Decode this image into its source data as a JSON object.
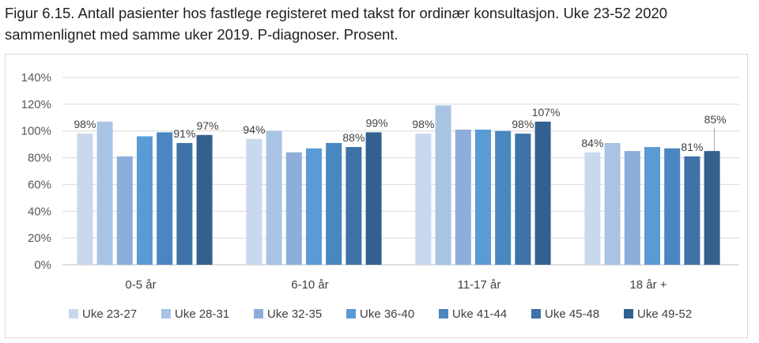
{
  "caption": {
    "line1": "Figur 6.15. Antall pasienter hos fastlege registeret med takst for ordinær konsultasjon. Uke 23-52 2020",
    "line2": "sammenlignet med samme uker 2019. P-diagnoser. Prosent."
  },
  "chart_data": {
    "type": "bar",
    "title": "",
    "xlabel": "",
    "ylabel": "",
    "ylim": [
      0,
      140
    ],
    "y_ticks": [
      "0%",
      "20%",
      "40%",
      "60%",
      "80%",
      "100%",
      "120%",
      "140%"
    ],
    "grid": true,
    "legend_position": "bottom",
    "categories": [
      "0-5 år",
      "6-10 år",
      "11-17 år",
      "18 år +"
    ],
    "series": [
      {
        "name": "Uke 23-27",
        "color": "#c9d8ec",
        "values": [
          98,
          94,
          98,
          84
        ],
        "labels": [
          "98%",
          "94%",
          "98%",
          "84%"
        ]
      },
      {
        "name": "Uke 28-31",
        "color": "#a9c3e5",
        "values": [
          107,
          100,
          119,
          91
        ],
        "labels": [
          "",
          "",
          "",
          ""
        ]
      },
      {
        "name": "Uke 32-35",
        "color": "#8daedb",
        "values": [
          81,
          84,
          101,
          85
        ],
        "labels": [
          "",
          "",
          "",
          ""
        ]
      },
      {
        "name": "Uke 36-40",
        "color": "#5b9bd5",
        "values": [
          96,
          87,
          101,
          88
        ],
        "labels": [
          "",
          "",
          "",
          ""
        ]
      },
      {
        "name": "Uke 41-44",
        "color": "#4a86c0",
        "values": [
          99,
          91,
          100,
          87
        ],
        "labels": [
          "",
          "",
          "",
          ""
        ]
      },
      {
        "name": "Uke 45-48",
        "color": "#3f72a6",
        "values": [
          91,
          88,
          98,
          81
        ],
        "labels": [
          "91%",
          "88%",
          "98%",
          "81%"
        ]
      },
      {
        "name": "Uke 49-52",
        "color": "#33608e",
        "values": [
          97,
          99,
          107,
          85
        ],
        "labels": [
          "97%",
          "99%",
          "107%",
          "85%"
        ]
      }
    ]
  }
}
